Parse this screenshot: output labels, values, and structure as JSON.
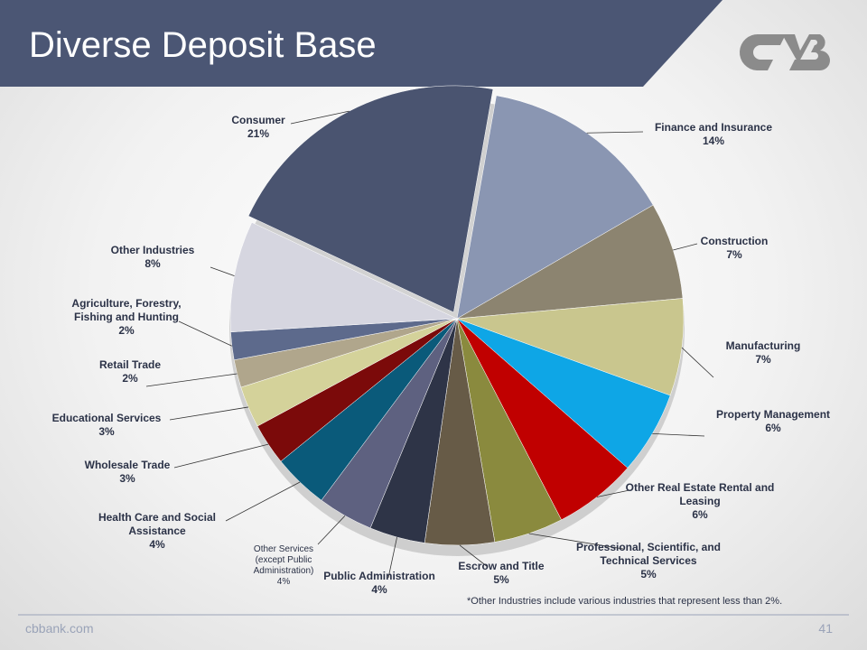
{
  "title": "Diverse Deposit Base",
  "footer": "cbbank.com",
  "page_number": "41",
  "footnote": "*Other Industries include various industries that represent less than 2%.",
  "chart_data": {
    "type": "pie",
    "categories": [
      "Finance and Insurance",
      "Construction",
      "Manufacturing",
      "Property Management",
      "Other Real Estate Rental and Leasing",
      "Professional, Scientific, and Technical Services",
      "Escrow and Title",
      "Public Administration",
      "Other Services (except Public Administration)",
      "Health Care and Social Assistance",
      "Wholesale Trade",
      "Educational Services",
      "Retail Trade",
      "Agriculture, Forestry, Fishing and Hunting",
      "Other Industries",
      "Consumer"
    ],
    "values": [
      14,
      7,
      7,
      6,
      6,
      5,
      5,
      4,
      4,
      4,
      3,
      3,
      2,
      2,
      8,
      21
    ],
    "value_labels": [
      "14%",
      "7%",
      "7%",
      "6%",
      "6%",
      "5%",
      "5%",
      "4%",
      "4%",
      "4%",
      "3%",
      "3%",
      "2%",
      "2%",
      "8%",
      "21%"
    ],
    "colors": [
      "#8a96b2",
      "#8c8470",
      "#c9c68e",
      "#0ea6e6",
      "#c00000",
      "#8a8a3e",
      "#675b47",
      "#2e3447",
      "#5e6180",
      "#0a5a7a",
      "#7b0a0a",
      "#d4d29a",
      "#b0a68c",
      "#5d6a8c",
      "#d6d6e0",
      "#4a5470"
    ]
  }
}
